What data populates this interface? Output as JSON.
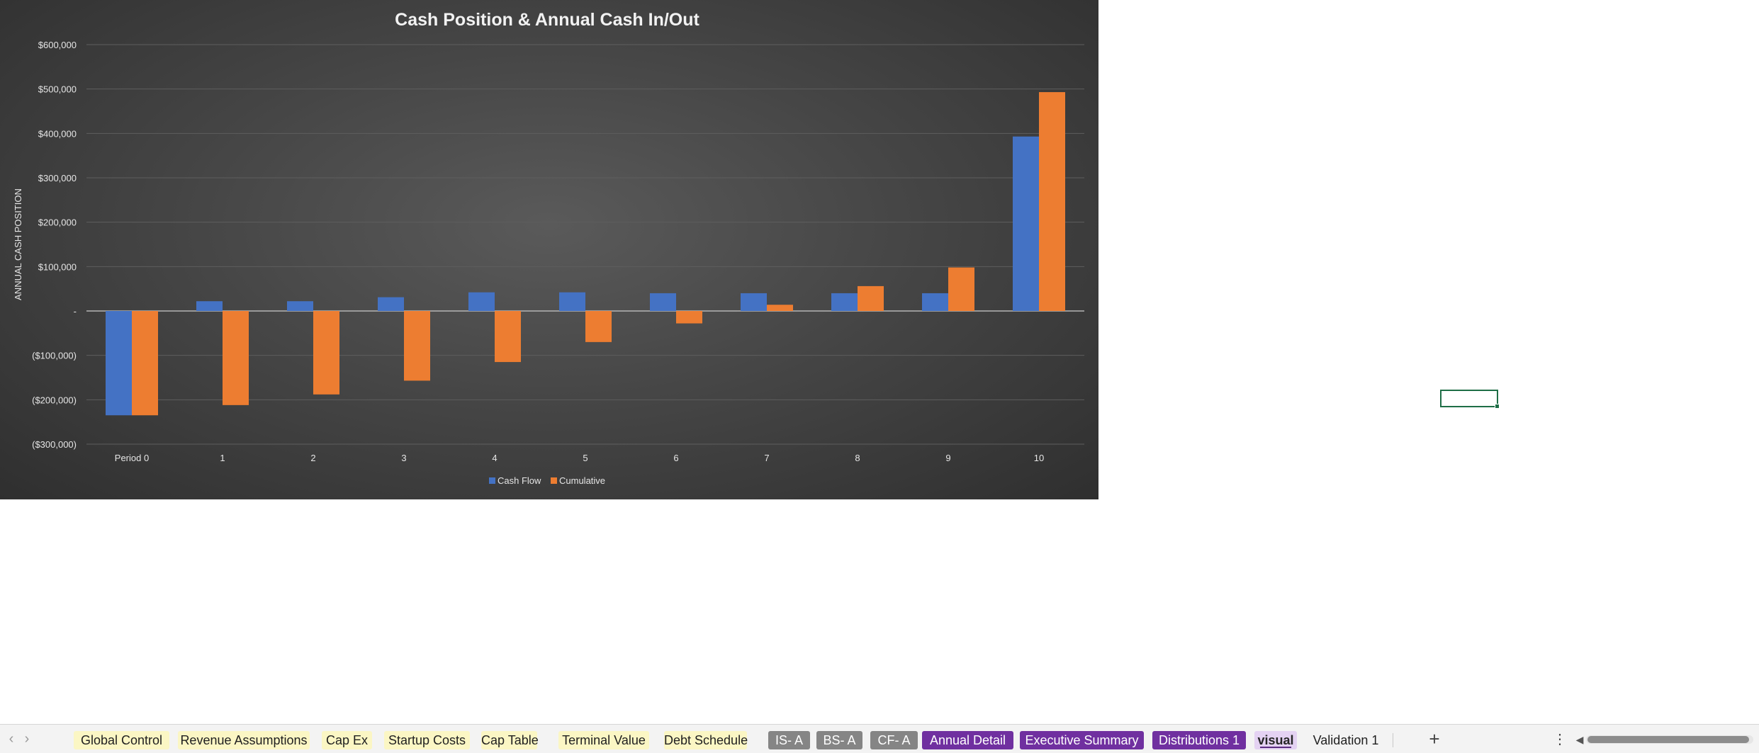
{
  "chart_data": {
    "type": "bar",
    "title": "Cash Position & Annual Cash In/Out",
    "xlabel": "",
    "ylabel": "ANNUAL CASH POSITION",
    "categories": [
      "Period 0",
      "1",
      "2",
      "3",
      "4",
      "5",
      "6",
      "7",
      "8",
      "9",
      "10"
    ],
    "series": [
      {
        "name": "Cash Flow",
        "color": "#4472c4",
        "values": [
          -235000,
          22000,
          22000,
          31000,
          42000,
          42000,
          40000,
          40000,
          40000,
          40000,
          393000
        ]
      },
      {
        "name": "Cumulative",
        "color": "#ed7d31",
        "values": [
          -235000,
          -212000,
          -188000,
          -157000,
          -115000,
          -70000,
          -28000,
          14000,
          56000,
          98000,
          493000
        ]
      }
    ],
    "ylim": [
      -300000,
      600000
    ],
    "yticks": [
      {
        "value": 600000,
        "label": "$600,000"
      },
      {
        "value": 500000,
        "label": "$500,000"
      },
      {
        "value": 400000,
        "label": "$400,000"
      },
      {
        "value": 300000,
        "label": "$300,000"
      },
      {
        "value": 200000,
        "label": "$200,000"
      },
      {
        "value": 100000,
        "label": "$100,000"
      },
      {
        "value": 0,
        "label": "-"
      },
      {
        "value": -100000,
        "label": "($100,000)"
      },
      {
        "value": -200000,
        "label": "($200,000)"
      },
      {
        "value": -300000,
        "label": "($300,000)"
      }
    ],
    "grid": true,
    "legend_position": "bottom"
  },
  "tabs": [
    {
      "label": "Global Control",
      "style": "yellow"
    },
    {
      "label": "Revenue Assumptions",
      "style": "yellow"
    },
    {
      "label": "Cap Ex",
      "style": "yellow"
    },
    {
      "label": "Startup Costs",
      "style": "yellow"
    },
    {
      "label": "Cap Table",
      "style": "yellow"
    },
    {
      "label": "Terminal Value",
      "style": "yellow"
    },
    {
      "label": "Debt Schedule",
      "style": "yellow"
    },
    {
      "label": "IS- A",
      "style": "gray"
    },
    {
      "label": "BS- A",
      "style": "gray"
    },
    {
      "label": "CF- A",
      "style": "gray"
    },
    {
      "label": "Annual Detail",
      "style": "purple"
    },
    {
      "label": "Executive Summary",
      "style": "purple"
    },
    {
      "label": "Distributions 1",
      "style": "purple"
    },
    {
      "label": "visual",
      "style": "active"
    },
    {
      "label": "Validation 1",
      "style": "plain"
    }
  ],
  "tabbar": {
    "prev_icon": "‹",
    "next_icon": "›",
    "add_icon": "+",
    "more_icon": "⋮",
    "scroll_left_icon": "◀"
  }
}
